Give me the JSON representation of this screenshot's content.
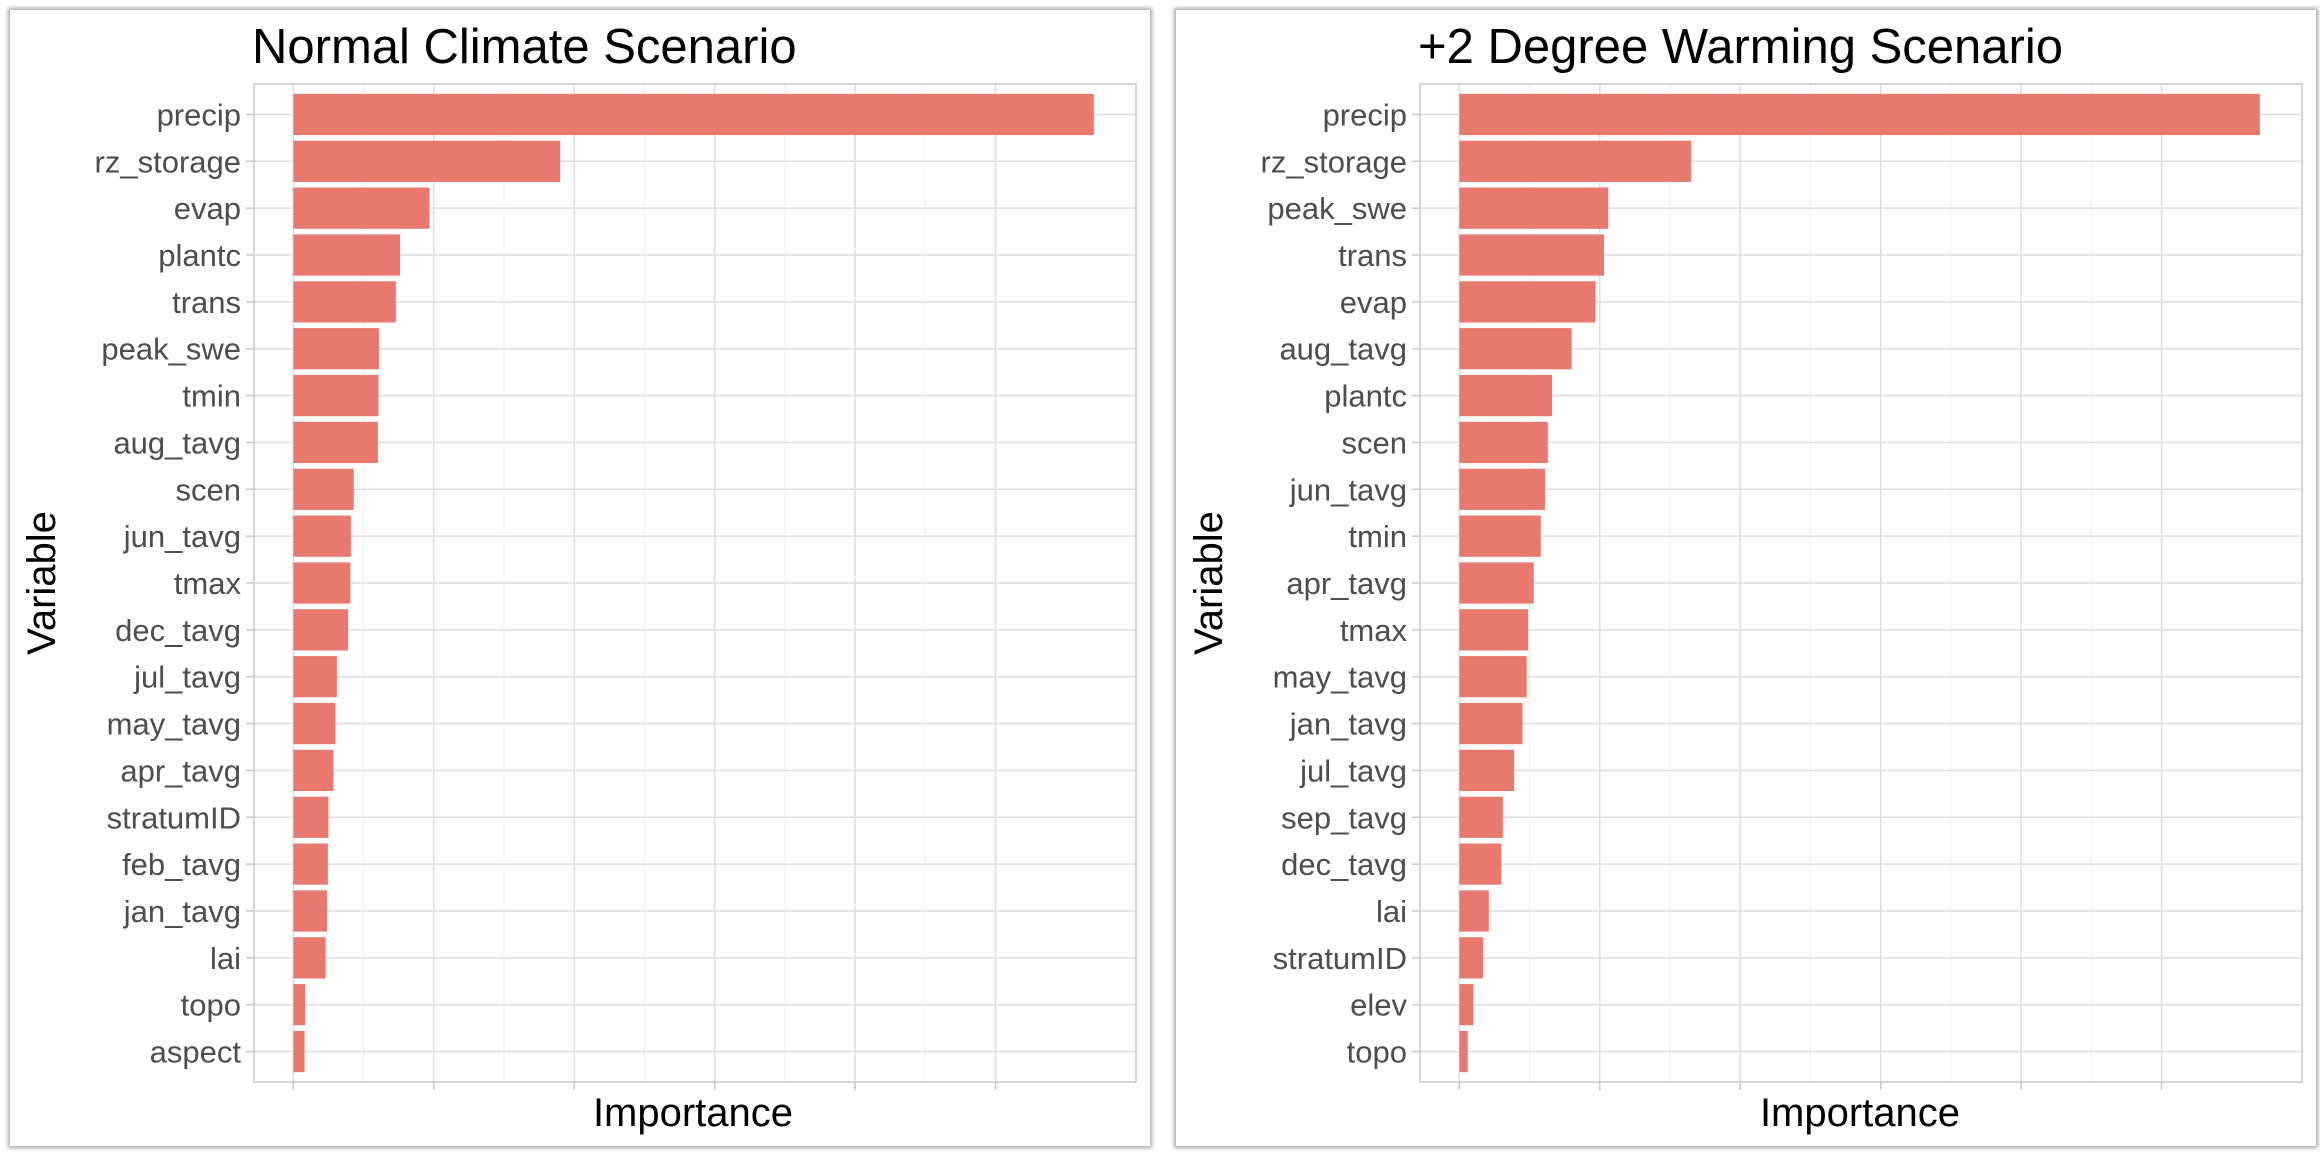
{
  "colors": {
    "bar": "#e8796f",
    "grid": "#dedede",
    "border": "#c8c8c8",
    "text": "#4d4d4d"
  },
  "chart_data": [
    {
      "type": "bar",
      "orientation": "horizontal",
      "title": "Normal Climate Scenario",
      "xlabel": "Importance",
      "ylabel": "Variable",
      "xlim": [
        -14,
        300
      ],
      "x_ticks_unlabeled": [
        0,
        50,
        100,
        150,
        200,
        250
      ],
      "grid": true,
      "categories": [
        "precip",
        "rz_storage",
        "evap",
        "plantc",
        "trans",
        "peak_swe",
        "tmin",
        "aug_tavg",
        "scen",
        "jun_tavg",
        "tmax",
        "dec_tavg",
        "jul_tavg",
        "may_tavg",
        "apr_tavg",
        "stratumID",
        "feb_tavg",
        "jan_tavg",
        "lai",
        "topo",
        "aspect"
      ],
      "values": [
        285.0,
        95.0,
        48.5,
        38.0,
        36.5,
        30.5,
        30.3,
        30.1,
        21.5,
        20.5,
        20.3,
        19.5,
        15.5,
        15.0,
        14.3,
        12.5,
        12.3,
        12.0,
        11.5,
        4.2,
        4.0
      ]
    },
    {
      "type": "bar",
      "orientation": "horizontal",
      "title": "+2 Degree Warming Scenario",
      "xlabel": "Importance",
      "ylabel": "Variable",
      "xlim": [
        -14,
        300
      ],
      "x_ticks_unlabeled": [
        0,
        50,
        100,
        150,
        200,
        250
      ],
      "grid": true,
      "categories": [
        "precip",
        "rz_storage",
        "peak_swe",
        "trans",
        "evap",
        "aug_tavg",
        "plantc",
        "scen",
        "jun_tavg",
        "tmin",
        "apr_tavg",
        "tmax",
        "may_tavg",
        "jan_tavg",
        "jul_tavg",
        "sep_tavg",
        "dec_tavg",
        "lai",
        "stratumID",
        "elev",
        "topo"
      ],
      "values": [
        285.0,
        82.5,
        53.0,
        51.5,
        48.5,
        40.0,
        33.0,
        31.5,
        30.5,
        29.0,
        26.5,
        24.5,
        24.0,
        22.5,
        19.5,
        15.5,
        15.0,
        10.5,
        8.5,
        5.0,
        3.0
      ]
    }
  ]
}
